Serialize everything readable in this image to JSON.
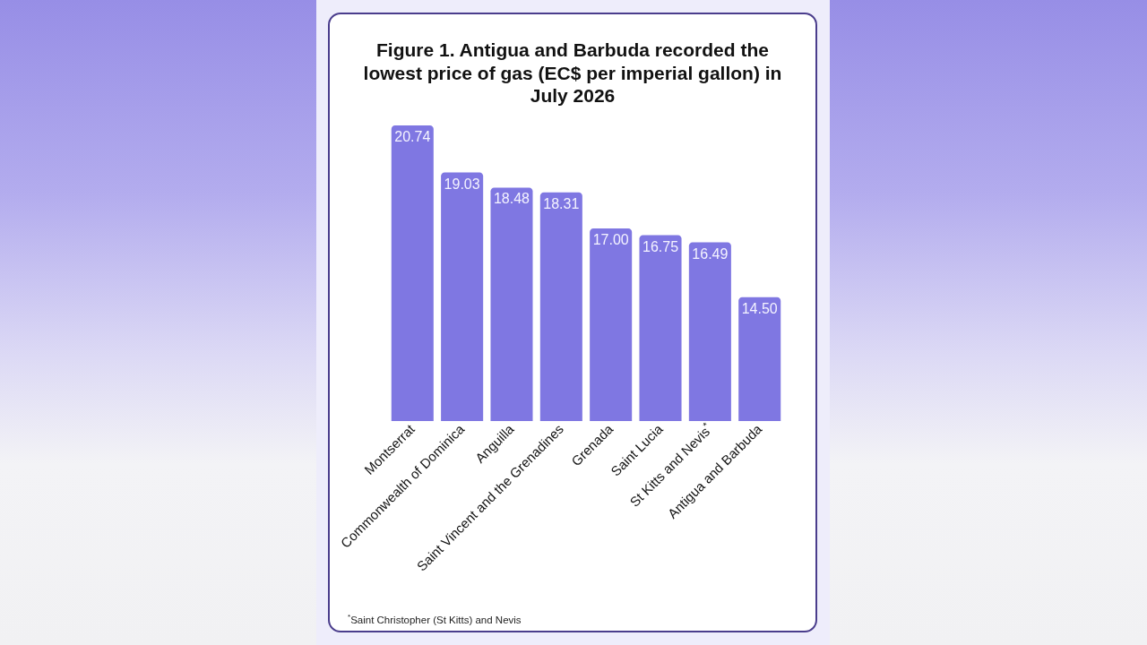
{
  "chart_data": {
    "type": "bar",
    "title": "Figure 1. Antigua and Barbuda recorded the lowest price of gas (EC$ per imperial gallon) in July 2026",
    "categories": [
      "Montserrat",
      "Commonwealth of Dominica",
      "Anguilla",
      "Saint Vincent and the Grenadines",
      "Grenada",
      "Saint Lucia",
      "St Kitts and Nevis$^{*}$",
      "Antigua and Barbuda"
    ],
    "values": [
      20.74,
      19.03,
      18.48,
      18.31,
      17.0,
      16.75,
      16.49,
      14.5
    ],
    "value_labels": [
      "20.74",
      "19.03",
      "18.48",
      "18.31",
      "17.00",
      "16.75",
      "16.49",
      "14.50"
    ],
    "color": "#7f77e2",
    "ylim": [
      10,
      20.74
    ],
    "tick_labels": "x",
    "annotations": [
      "$^{*}$Saint Christopher (St Kitts) and Nevis"
    ]
  }
}
